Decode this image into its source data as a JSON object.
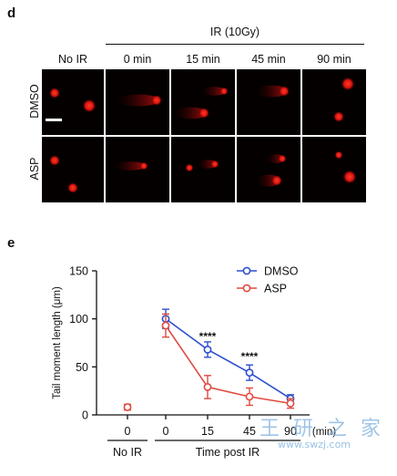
{
  "panel_d": {
    "label": "d",
    "ir_header": "IR (10Gy)",
    "columns": [
      "No IR",
      "0 min",
      "15 min",
      "45 min",
      "90 min"
    ],
    "rows": [
      "DMSO",
      "ASP"
    ]
  },
  "panel_e": {
    "label": "e",
    "chart_data": {
      "type": "line",
      "ylabel": "Tail moment length (μm)",
      "ylim": [
        0,
        150
      ],
      "yticks": [
        "0",
        "50",
        "100",
        "150"
      ],
      "xticks": [
        "0",
        "0",
        "15",
        "45",
        "90"
      ],
      "x_unit": "(min)",
      "group_labels": [
        "No IR",
        "Time post  IR"
      ],
      "series": [
        {
          "name": "DMSO",
          "color": "#2f4fcf",
          "x": [
            "0",
            "15",
            "45",
            "90"
          ],
          "values": [
            100,
            68,
            44,
            17
          ],
          "err": [
            10,
            8,
            8,
            4
          ]
        },
        {
          "name": "ASP",
          "color": "#e04a3f",
          "x": [
            "0",
            "15",
            "45",
            "90"
          ],
          "values": [
            93,
            29,
            19,
            12
          ],
          "err": [
            12,
            12,
            9,
            5
          ]
        },
        {
          "name": "No IR",
          "color": "#e04a3f",
          "x": [
            "0"
          ],
          "values": [
            8
          ],
          "err": [
            3
          ]
        }
      ],
      "annotations": [
        "****",
        "****"
      ],
      "legend_position": "top-right"
    }
  },
  "watermark": {
    "text": "王 研 之 家",
    "url": "www.swzj.com"
  }
}
